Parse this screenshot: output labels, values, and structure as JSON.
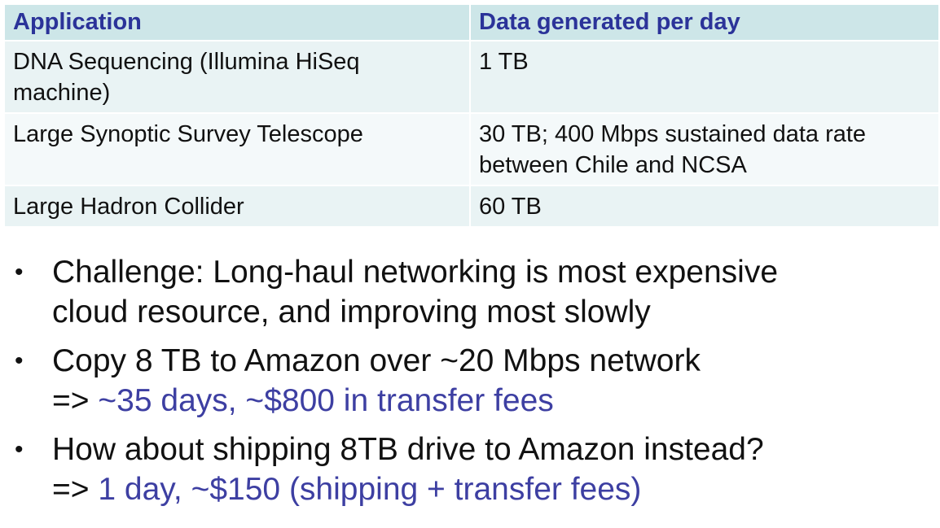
{
  "table": {
    "headers": [
      "Application",
      "Data generated per day"
    ],
    "rows": [
      {
        "application": "DNA Sequencing (Illumina HiSeq machine)",
        "data": "1 TB"
      },
      {
        "application": "Large Synoptic Survey Telescope",
        "data": "30 TB; 400 Mbps sustained data rate between Chile and NCSA"
      },
      {
        "application": "Large Hadron Collider",
        "data": "60 TB"
      }
    ]
  },
  "bullets": [
    {
      "line1": "Challenge: Long-haul networking is most expensive",
      "line2": "cloud resource, and improving most slowly"
    },
    {
      "line1": "Copy 8 TB to Amazon over ~20 Mbps network",
      "prefix": "=> ",
      "highlight": "~35 days, ~$800 in transfer fees"
    },
    {
      "line1": "How about shipping 8TB drive to Amazon instead?",
      "prefix": "=> ",
      "highlight": "1 day, ~$150 (shipping + transfer fees)"
    }
  ],
  "colors": {
    "header_bg": "#cde6e8",
    "header_text": "#2b3399",
    "row_bg_1": "#e9f3f4",
    "row_bg_2": "#f4f9fa",
    "accent_text": "#3d3fa2"
  }
}
